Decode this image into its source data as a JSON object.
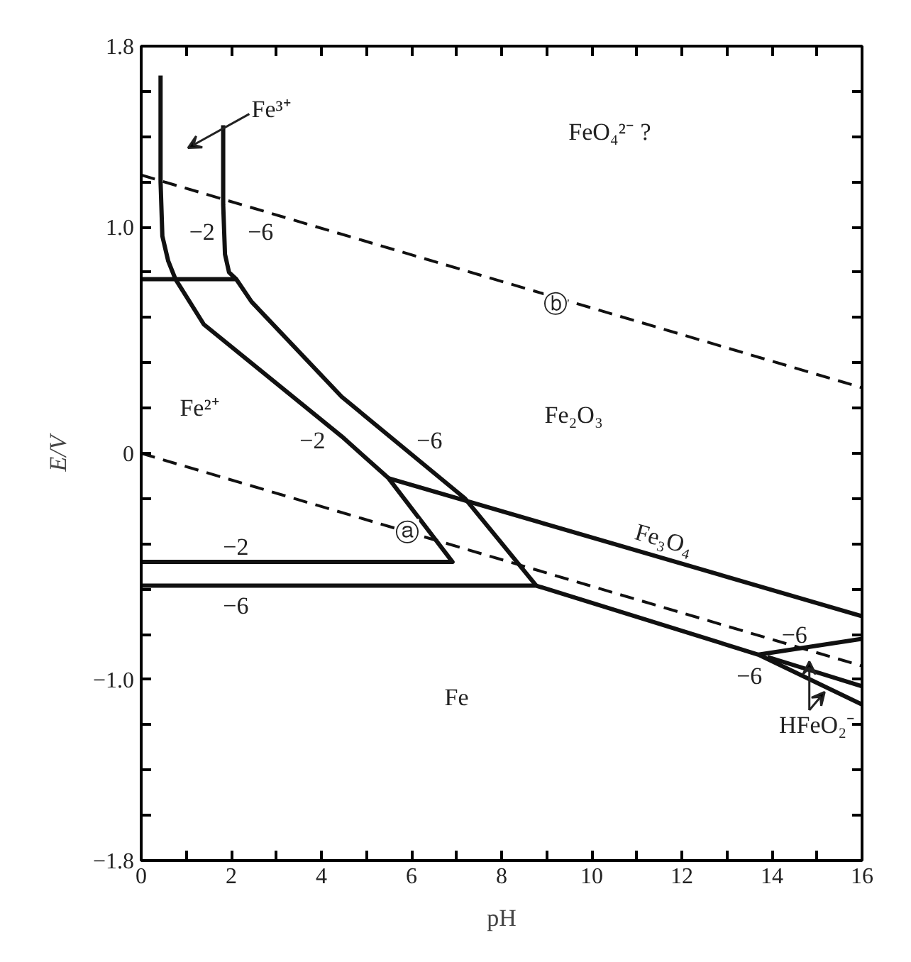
{
  "chart_data": {
    "type": "line",
    "xlabel": "pH",
    "ylabel": "E/V",
    "xlim": [
      0,
      16
    ],
    "ylim": [
      -1.8,
      1.8
    ],
    "xticks": [
      0,
      {
        "value": 1,
        "label": null
      },
      2,
      {
        "value": 3,
        "label": null
      },
      4,
      {
        "value": 5,
        "label": null
      },
      6,
      {
        "value": 7,
        "label": null
      },
      8,
      {
        "value": 9,
        "label": null
      },
      10,
      {
        "value": 11,
        "label": null
      },
      12,
      {
        "value": 13,
        "label": null
      },
      14,
      {
        "value": 15,
        "label": null
      },
      16
    ],
    "yticks": [
      1.8,
      {
        "value": 1.6,
        "label": null
      },
      {
        "value": 1.4,
        "label": null
      },
      {
        "value": 1.2,
        "label": null
      },
      {
        "value": 1.0,
        "label": "1.0"
      },
      {
        "value": 0.8,
        "label": null
      },
      {
        "value": 0.6,
        "label": null
      },
      {
        "value": 0.4,
        "label": null
      },
      {
        "value": 0.2,
        "label": null
      },
      0,
      {
        "value": -0.2,
        "label": null
      },
      {
        "value": -0.4,
        "label": null
      },
      {
        "value": -0.6,
        "label": null
      },
      {
        "value": -0.8,
        "label": null
      },
      {
        "value": -1.0,
        "label": "−1.0"
      },
      {
        "value": -1.2,
        "label": null
      },
      {
        "value": -1.4,
        "label": null
      },
      {
        "value": -1.6,
        "label": null
      },
      {
        "value": -1.8,
        "label": "−1.8"
      }
    ],
    "grid": false,
    "marker": "none",
    "series": [
      {
        "color": "#111111",
        "x": [
          0.43,
          0.43,
          0.47,
          0.6,
          0.76,
          1.39,
          4.45,
          5.49,
          6.91,
          0
        ],
        "values": [
          1.67,
          1.2,
          0.96,
          0.85,
          0.77,
          0.57,
          0.075,
          -0.11,
          -0.48,
          -0.48
        ]
      },
      {
        "color": "#111111",
        "x": [
          1.82,
          1.82,
          1.86,
          1.95,
          2.11,
          2.45,
          4.45,
          7.19,
          8.77
        ],
        "values": [
          1.45,
          1.1,
          0.88,
          0.8,
          0.77,
          0.67,
          0.25,
          -0.2,
          -0.585
        ]
      },
      {
        "color": "#111111",
        "x": [
          0,
          2.11
        ],
        "values": [
          0.77,
          0.77
        ]
      },
      {
        "color": "#111111",
        "x": [
          5.49,
          16
        ],
        "values": [
          -0.11,
          -0.72
        ]
      },
      {
        "color": "#111111",
        "x": [
          0,
          8.77,
          13.7,
          16
        ],
        "values": [
          -0.585,
          -0.585,
          -0.89,
          -1.11
        ]
      },
      {
        "color": "#111111",
        "x": [
          13.7,
          16
        ],
        "values": [
          -0.89,
          -0.82
        ]
      },
      {
        "color": "#111111",
        "x": [
          13.9,
          16
        ],
        "values": [
          -0.9,
          -1.03
        ]
      },
      {
        "color": "#111111",
        "x": [
          0,
          16
        ],
        "values": [
          0,
          -0.94
        ],
        "line_style": "dashed"
      },
      {
        "color": "#111111",
        "x": [
          0,
          16
        ],
        "values": [
          1.23,
          0.29
        ],
        "line_style": "dashed"
      }
    ],
    "annotations": [
      "Fe³⁺",
      "FeO₄²⁻ ?",
      "−2",
      "−6",
      "ⓑ",
      "Fe²⁺",
      "Fe₂O₃",
      "−2",
      "−6",
      "ⓐ",
      "−2",
      "Fe₃O₄",
      "−6",
      "−6",
      "−6",
      "Fe",
      "HFeO₂⁻"
    ]
  }
}
